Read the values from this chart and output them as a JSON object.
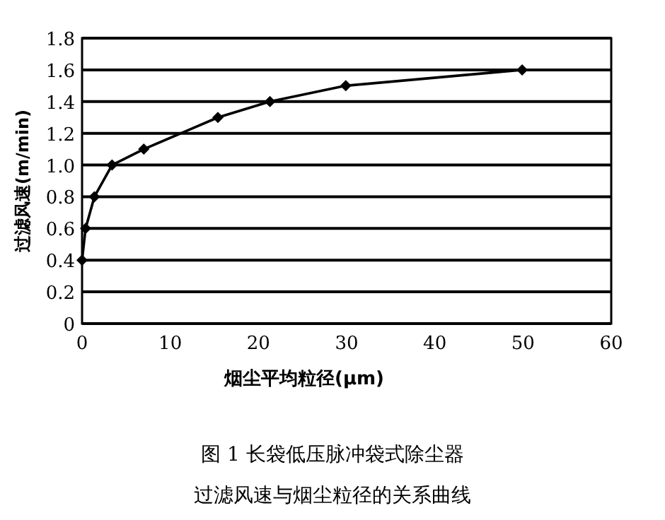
{
  "chart_data": {
    "type": "line",
    "title": "图 1  长袋低压脉冲袋式除尘器",
    "subtitle": "过滤风速与烟尘粒径的关系曲线",
    "xlabel": "烟尘平均粒径(μm)",
    "ylabel": "过滤风速(m/min)",
    "x": [
      0,
      0.4,
      1.4,
      3.4,
      7,
      15.4,
      21.3,
      29.9,
      49.9
    ],
    "series": [
      {
        "color": "#000000",
        "values": [
          0.4,
          0.6,
          0.8,
          1.0,
          1.1,
          1.3,
          1.4,
          1.5,
          1.6
        ]
      }
    ],
    "xlim": [
      0,
      60
    ],
    "xticks": [
      0,
      10,
      20,
      30,
      40,
      50,
      60
    ],
    "ylim": [
      0,
      1.8
    ],
    "yticks": [
      0,
      0.2,
      0.4,
      0.6,
      0.8,
      {
        "value": 1.0,
        "label": "1.0"
      },
      1.2,
      1.4,
      1.6,
      1.8
    ],
    "grid": "y",
    "marker": "diamond",
    "line_style": "solid"
  }
}
